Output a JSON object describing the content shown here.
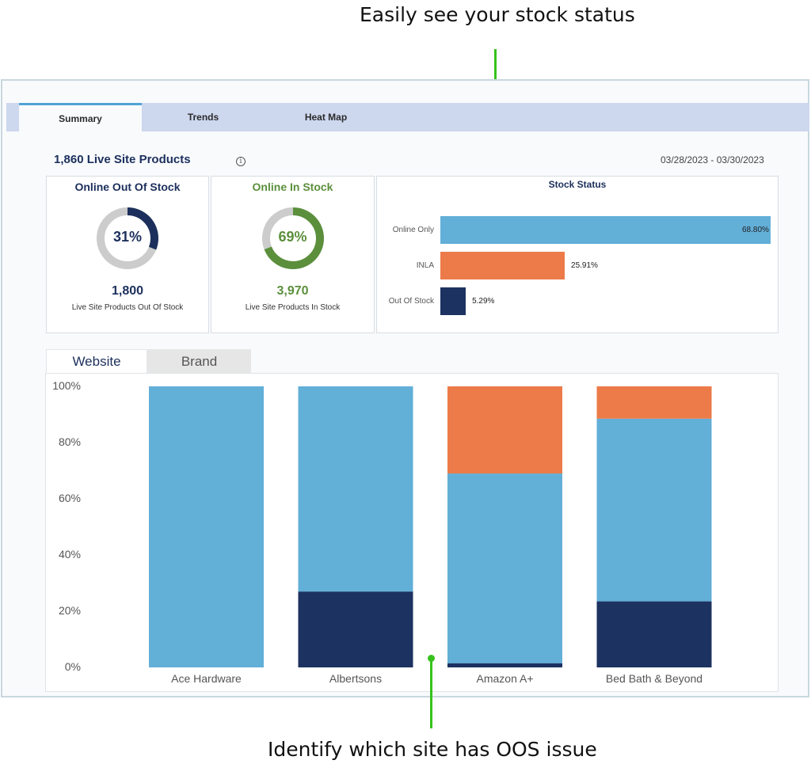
{
  "callouts": {
    "top": "Easily see your stock status",
    "bottom": "Identify which site has OOS issue"
  },
  "tabs": [
    {
      "label": "Summary",
      "active": true
    },
    {
      "label": "Trends",
      "active": false
    },
    {
      "label": "Heat Map",
      "active": false
    }
  ],
  "summary": {
    "title": "1,860 Live Site Products",
    "info_icon": "info-icon",
    "date_range": "03/28/2023 - 03/30/2023"
  },
  "cards": {
    "out_of_stock": {
      "title": "Online Out Of Stock",
      "percent_label": "31%",
      "percent": 31,
      "value": "1,800",
      "sub": "Live Site Products Out Of Stock",
      "color": "#1c2f5c",
      "ring_color": "#1c2f5c"
    },
    "in_stock": {
      "title": "Online In Stock",
      "percent_label": "69%",
      "percent": 69,
      "value": "3,970",
      "sub": "Live Site Products In Stock",
      "color": "#5b8f3c",
      "ring_color": "#5b8f3c"
    }
  },
  "stock_status": {
    "title": "Stock Status",
    "bars": [
      {
        "label": "Online Only",
        "value": 68.8,
        "value_label": "68.80%",
        "color": "#62afd8"
      },
      {
        "label": "INLA",
        "value": 25.91,
        "value_label": "25.91%",
        "color": "#ec7b49"
      },
      {
        "label": "Out Of Stock",
        "value": 5.29,
        "value_label": "5.29%",
        "color": "#1c3260"
      }
    ]
  },
  "subtabs": [
    {
      "label": "Website",
      "active": true
    },
    {
      "label": "Brand",
      "active": false
    }
  ],
  "chart_data": {
    "type": "bar",
    "stacked": true,
    "categories": [
      "Ace Hardware",
      "Albertsons",
      "Amazon A+",
      "Bed Bath & Beyond"
    ],
    "series": [
      {
        "color": "#1c3260",
        "values": [
          0,
          27,
          1.5,
          23.5
        ]
      },
      {
        "color": "#62afd8",
        "values": [
          100,
          73,
          67.5,
          65
        ]
      },
      {
        "color": "#ec7b49",
        "values": [
          0,
          0,
          31,
          11.5
        ]
      }
    ],
    "yticks": [
      "0%",
      "20%",
      "40%",
      "60%",
      "80%",
      "100%"
    ],
    "ylim": [
      0,
      100
    ],
    "legend": "none"
  }
}
